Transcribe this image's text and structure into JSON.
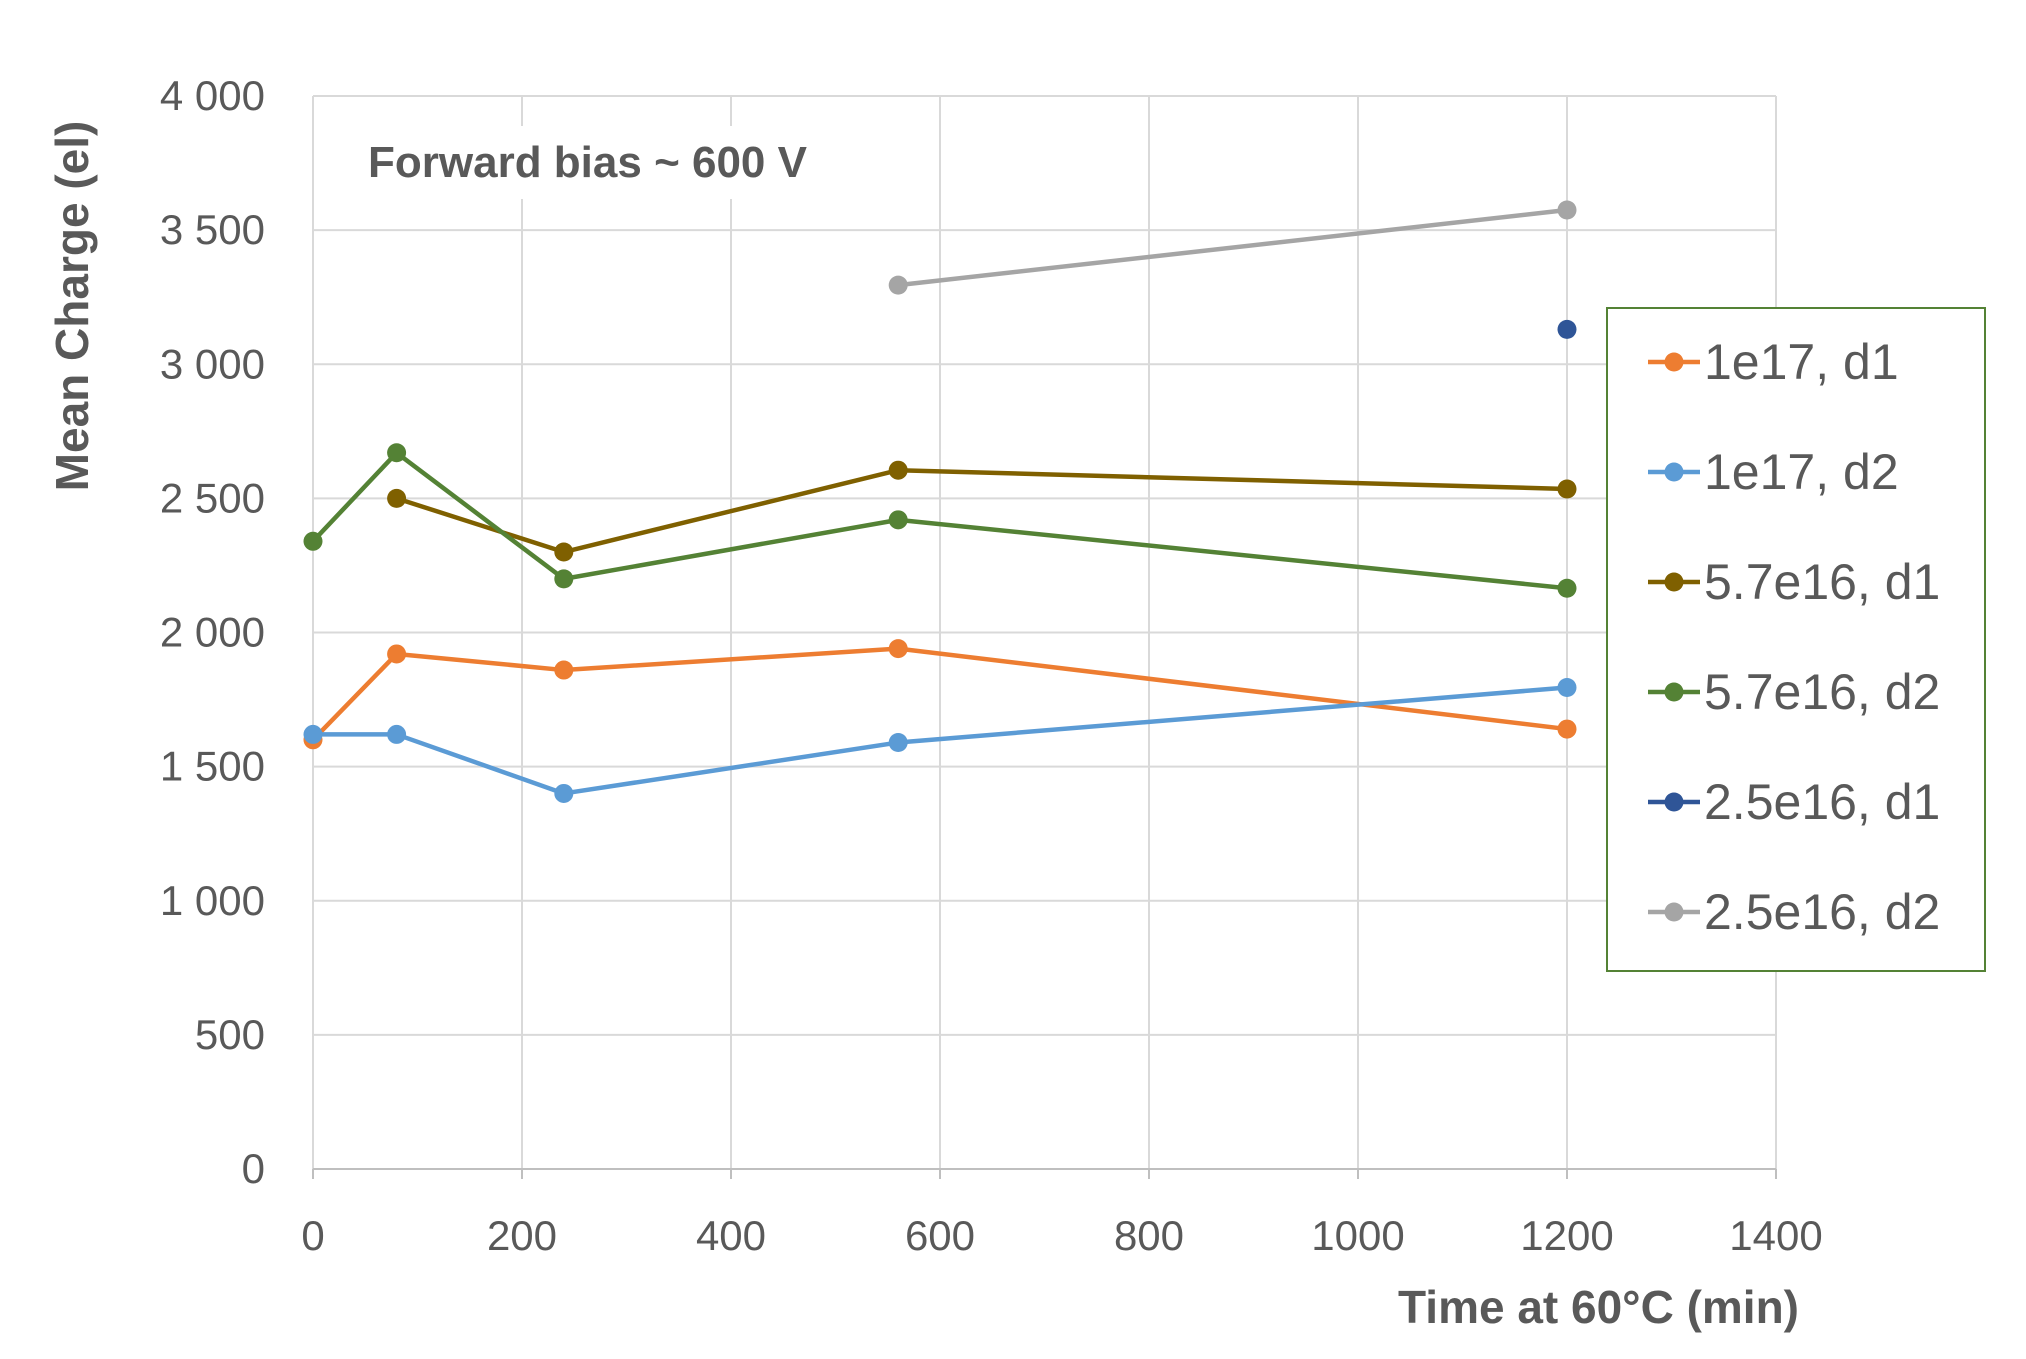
{
  "chart_data": {
    "type": "line",
    "title": "",
    "annotation": "Forward bias ~ 600 V",
    "xlabel": "Time at 60°C (min)",
    "ylabel": "Mean Charge (el)",
    "xlim": [
      0,
      1400
    ],
    "ylim": [
      0,
      4000
    ],
    "x_ticks": [
      0,
      200,
      400,
      600,
      800,
      1000,
      1200,
      1400
    ],
    "x_tick_labels": [
      "0",
      "200",
      "400",
      "600",
      "800",
      "1000",
      "1200",
      "1400"
    ],
    "y_ticks": [
      0,
      500,
      1000,
      1500,
      2000,
      2500,
      3000,
      3500,
      4000
    ],
    "y_tick_labels": [
      "0",
      "500",
      "1 000",
      "1 500",
      "2 000",
      "2 500",
      "3 000",
      "3 500",
      "4 000"
    ],
    "grid": true,
    "legend_position": "right",
    "series": [
      {
        "name": "1e17, d1",
        "color": "#ED7D31",
        "x": [
          0,
          80,
          240,
          560,
          1200
        ],
        "y": [
          1600,
          1920,
          1860,
          1940,
          1640
        ]
      },
      {
        "name": "1e17, d2",
        "color": "#5B9BD5",
        "x": [
          0,
          80,
          240,
          560,
          1200
        ],
        "y": [
          1620,
          1620,
          1400,
          1590,
          1795
        ]
      },
      {
        "name": "5.7e16, d1",
        "color": "#7F6000",
        "x": [
          80,
          240,
          560,
          1200
        ],
        "y": [
          2500,
          2300,
          2605,
          2535
        ]
      },
      {
        "name": "5.7e16, d2",
        "color": "#548235",
        "x": [
          0,
          80,
          240,
          560,
          1200
        ],
        "y": [
          2340,
          2670,
          2200,
          2420,
          2165
        ]
      },
      {
        "name": "2.5e16, d1",
        "color": "#2F5597",
        "x": [
          1200
        ],
        "y": [
          3130
        ]
      },
      {
        "name": "2.5e16, d2",
        "color": "#A5A5A5",
        "x": [
          560,
          1200
        ],
        "y": [
          3295,
          3575
        ]
      }
    ]
  }
}
